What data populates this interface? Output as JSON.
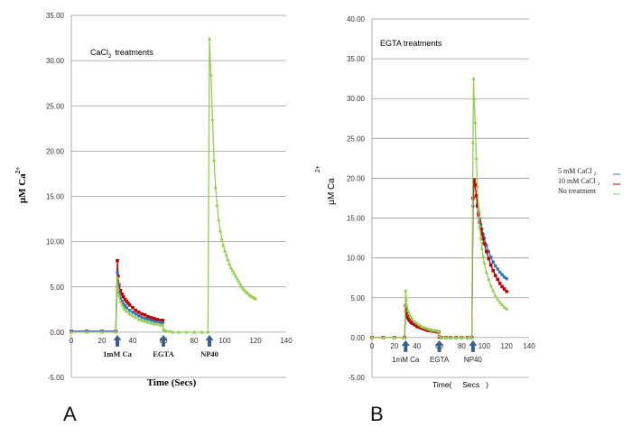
{
  "colors": {
    "red": "#c00000",
    "blue": "#2e75b6",
    "green": "#92d050",
    "arrow": "#3d5f8f"
  },
  "chart_data": [
    {
      "panel": "A",
      "type": "scatter",
      "annotation": "CaCl",
      "annotation_sub": "2",
      "annotation_tail": "treatments",
      "xlabel": "Time (Secs)",
      "ylabel": "μM Ca",
      "ylabel_sup": "2+",
      "xlim": [
        0,
        140
      ],
      "ylim": [
        -5,
        35
      ],
      "xticks": [
        "0",
        "20",
        "40",
        "60",
        "80",
        "100",
        "120",
        "140"
      ],
      "yticks": [
        "-5.00",
        "0.00",
        "5.00",
        "10.00",
        "15.00",
        "20.00",
        "25.00",
        "30.00",
        "35.00"
      ],
      "events": [
        {
          "label": "1mM Ca",
          "x": 30
        },
        {
          "label": "EGTA",
          "x": 60
        },
        {
          "label": "NP40",
          "x": 90
        }
      ],
      "series": [
        {
          "color_key": "red",
          "marker": "square",
          "x": [
            0,
            10,
            20,
            29,
            30,
            30.5,
            31,
            32,
            33,
            34,
            35,
            36,
            37,
            38,
            40,
            42,
            44,
            46,
            48,
            50,
            52,
            54,
            56,
            58,
            59.5
          ],
          "y": [
            0.1,
            0.1,
            0.1,
            0.1,
            7.9,
            6.2,
            5.2,
            4.6,
            4.2,
            3.9,
            3.6,
            3.4,
            3.2,
            3.0,
            2.7,
            2.4,
            2.2,
            2.0,
            1.9,
            1.7,
            1.6,
            1.5,
            1.4,
            1.3,
            1.3
          ]
        },
        {
          "color_key": "blue",
          "marker": "circle",
          "x": [
            0,
            10,
            20,
            29,
            30,
            30.5,
            31,
            32,
            33,
            34,
            35,
            36,
            38,
            40,
            42,
            44,
            46,
            48,
            50,
            52,
            54,
            56,
            58,
            59.5
          ],
          "y": [
            0.1,
            0.1,
            0.1,
            0.1,
            6.6,
            5.2,
            4.4,
            3.8,
            3.4,
            3.1,
            2.9,
            2.7,
            2.4,
            2.2,
            2.0,
            1.8,
            1.6,
            1.5,
            1.4,
            1.3,
            1.2,
            1.1,
            1.1,
            1.0
          ]
        },
        {
          "color_key": "green",
          "marker": "triangle",
          "x": [
            0,
            10,
            20,
            29,
            30,
            30.5,
            31,
            32,
            33,
            34,
            35,
            36,
            38,
            40,
            42,
            44,
            46,
            48,
            50,
            52,
            54,
            56,
            58,
            59.5,
            60,
            61,
            62,
            64,
            66,
            70,
            75,
            80,
            85,
            89,
            90,
            91,
            92,
            93,
            94,
            95,
            96,
            97,
            98,
            99,
            100,
            101,
            102,
            103,
            104,
            105,
            106,
            107,
            108,
            109,
            110,
            111,
            112,
            113,
            114,
            115,
            116,
            117,
            118,
            119,
            120
          ],
          "y": [
            0,
            0,
            0,
            0,
            6.0,
            4.8,
            4.0,
            3.4,
            3.0,
            2.7,
            2.5,
            2.3,
            2.0,
            1.8,
            1.6,
            1.4,
            1.3,
            1.2,
            1.1,
            1.0,
            0.9,
            0.9,
            0.8,
            0.8,
            0.3,
            0.2,
            0.1,
            0.1,
            0,
            0,
            0,
            0,
            0,
            0,
            32.4,
            28.4,
            23.5,
            19.0,
            16.0,
            14.0,
            12.4,
            11.2,
            10.3,
            9.6,
            9.0,
            8.5,
            8.0,
            7.5,
            7.1,
            6.8,
            6.5,
            6.2,
            5.9,
            5.6,
            5.3,
            5.0,
            4.8,
            4.6,
            4.4,
            4.3,
            4.1,
            4.0,
            3.9,
            3.8,
            3.7
          ]
        }
      ]
    },
    {
      "panel": "B",
      "type": "scatter",
      "annotation": "EGTA treatments",
      "xlabel": "Time(     Secs   )",
      "ylabel": "μM Ca",
      "ylabel_sup": "2+",
      "xlim": [
        0,
        140
      ],
      "ylim": [
        -5,
        40
      ],
      "xticks": [
        "0",
        "20",
        "40",
        "60",
        "80",
        "100",
        "120",
        "140"
      ],
      "yticks": [
        "-5.00",
        "0.00",
        "5.00",
        "10.00",
        "15.00",
        "20.00",
        "25.00",
        "30.00",
        "35.00",
        "40.00"
      ],
      "events": [
        {
          "label": "1mM  Ca",
          "x": 30
        },
        {
          "label": "EGTA",
          "x": 60
        },
        {
          "label": "NP40",
          "x": 90
        }
      ],
      "legend_placement": "right",
      "legend": [
        {
          "label": "5 mM CaCl",
          "sub": "2",
          "color_key": "blue"
        },
        {
          "label": "10 mM CaCl",
          "sub": "2",
          "color_key": "red"
        },
        {
          "label": "No treatment",
          "sub": "",
          "color_key": "green"
        }
      ],
      "series": [
        {
          "color_key": "blue",
          "marker": "circle",
          "x": [
            0,
            10,
            20,
            29,
            30,
            30.5,
            31,
            32,
            33,
            34,
            35,
            36,
            38,
            40,
            42,
            44,
            46,
            48,
            50,
            52,
            54,
            56,
            58,
            59.5,
            60,
            62,
            66,
            70,
            75,
            80,
            85,
            89,
            90,
            91,
            92,
            93,
            94,
            95,
            96,
            97,
            98,
            99,
            100,
            102,
            104,
            106,
            108,
            110,
            112,
            114,
            116,
            118,
            120
          ],
          "y": [
            0,
            0,
            0,
            0,
            3.3,
            3.0,
            2.7,
            2.4,
            2.2,
            2.0,
            1.9,
            1.8,
            1.6,
            1.4,
            1.3,
            1.2,
            1.1,
            1.0,
            0.9,
            0.9,
            0.8,
            0.8,
            0.7,
            0.7,
            0.1,
            0,
            0,
            0,
            0,
            0,
            0,
            0,
            16.5,
            19.5,
            19.0,
            17.8,
            16.7,
            15.7,
            14.9,
            14.2,
            13.6,
            13.0,
            12.5,
            11.6,
            10.8,
            10.1,
            9.5,
            9.0,
            8.6,
            8.2,
            7.9,
            7.6,
            7.4
          ]
        },
        {
          "color_key": "red",
          "marker": "square",
          "x": [
            0,
            10,
            20,
            29,
            30,
            30.5,
            31,
            32,
            33,
            34,
            35,
            36,
            38,
            40,
            42,
            44,
            46,
            48,
            50,
            52,
            54,
            56,
            58,
            59.5,
            60,
            62,
            66,
            70,
            75,
            80,
            85,
            89,
            90,
            91,
            92,
            93,
            94,
            95,
            96,
            97,
            98,
            99,
            100,
            102,
            104,
            106,
            108,
            110,
            112,
            114,
            116,
            118,
            120
          ],
          "y": [
            0,
            0,
            0,
            0,
            4.0,
            3.5,
            3.0,
            2.6,
            2.3,
            2.1,
            1.9,
            1.8,
            1.6,
            1.4,
            1.3,
            1.2,
            1.1,
            1.0,
            0.9,
            0.9,
            0.8,
            0.8,
            0.7,
            0.7,
            0.1,
            0,
            0,
            0,
            0,
            0,
            0,
            0,
            17.5,
            19.8,
            19.2,
            17.8,
            16.5,
            15.4,
            14.5,
            13.7,
            13.0,
            12.4,
            11.8,
            10.8,
            9.9,
            9.1,
            8.4,
            7.8,
            7.3,
            6.8,
            6.4,
            6.1,
            5.8
          ]
        },
        {
          "color_key": "green",
          "marker": "triangle",
          "x": [
            0,
            10,
            20,
            29,
            30,
            30.5,
            31,
            32,
            33,
            34,
            35,
            36,
            38,
            40,
            42,
            44,
            46,
            48,
            50,
            52,
            54,
            56,
            58,
            59.5,
            60,
            62,
            66,
            70,
            75,
            80,
            85,
            89,
            90,
            90.5,
            91,
            92,
            93,
            94,
            95,
            96,
            97,
            98,
            99,
            100,
            102,
            104,
            106,
            108,
            110,
            112,
            114,
            116,
            118,
            120
          ],
          "y": [
            0,
            0,
            0,
            0,
            5.9,
            4.8,
            4.0,
            3.4,
            3.0,
            2.7,
            2.5,
            2.3,
            2.0,
            1.8,
            1.6,
            1.4,
            1.3,
            1.2,
            1.1,
            1.0,
            0.9,
            0.9,
            0.8,
            0.8,
            0.2,
            0,
            0,
            0,
            0,
            0,
            0,
            0,
            24.5,
            32.5,
            30.0,
            27.0,
            22.5,
            19.0,
            16.2,
            14.0,
            12.5,
            11.2,
            10.2,
            9.4,
            8.2,
            7.3,
            6.5,
            5.9,
            5.3,
            4.8,
            4.4,
            4.1,
            3.8,
            3.6
          ]
        }
      ]
    }
  ]
}
